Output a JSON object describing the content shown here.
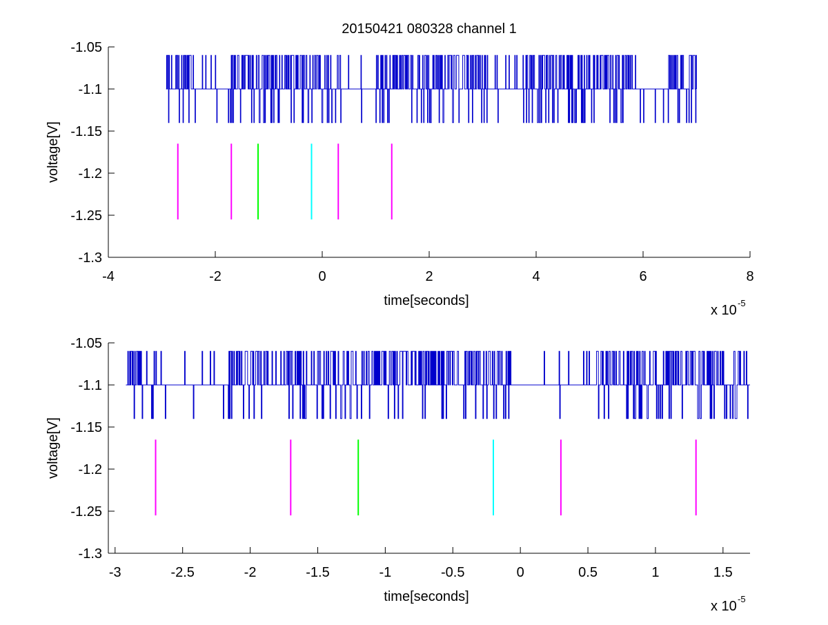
{
  "title": "20150421 080328 channel 1",
  "colors": {
    "signal": "#0000cc",
    "marker_magenta": "#ff00ff",
    "marker_green": "#00ff00",
    "marker_cyan": "#00ffff",
    "axes": "#000000",
    "background": "#ffffff"
  },
  "chart_data": [
    {
      "type": "line",
      "title": "20150421 080328 channel 1",
      "xlabel": "time[seconds]",
      "ylabel": "voltage[V]",
      "x_exponent_label": "x 10",
      "x_exponent": "-5",
      "xlim": [
        -4,
        8
      ],
      "ylim": [
        -1.3,
        -1.05
      ],
      "xticks": [
        -4,
        -2,
        0,
        2,
        4,
        6,
        8
      ],
      "xtick_labels": [
        "-4",
        "-2",
        "0",
        "2",
        "4",
        "6",
        "8"
      ],
      "yticks": [
        -1.3,
        -1.25,
        -1.2,
        -1.15,
        -1.1,
        -1.05
      ],
      "ytick_labels": [
        "-1.3",
        "-1.25",
        "-1.2",
        "-1.15",
        "-1.1",
        "-1.05"
      ],
      "grid": false,
      "series": [
        {
          "kind": "quantized-signal",
          "x_range": [
            -2.92,
            7.0
          ],
          "levels": [
            -1.14,
            -1.1,
            -1.06
          ],
          "baseline": -1.1
        }
      ],
      "markers": [
        {
          "x": -2.7,
          "color": "magenta",
          "y_range": [
            -1.255,
            -1.165
          ]
        },
        {
          "x": -1.7,
          "color": "magenta",
          "y_range": [
            -1.255,
            -1.165
          ]
        },
        {
          "x": -1.2,
          "color": "green",
          "y_range": [
            -1.255,
            -1.165
          ]
        },
        {
          "x": -0.2,
          "color": "cyan",
          "y_range": [
            -1.255,
            -1.165
          ]
        },
        {
          "x": 0.3,
          "color": "magenta",
          "y_range": [
            -1.255,
            -1.165
          ]
        },
        {
          "x": 1.3,
          "color": "magenta",
          "y_range": [
            -1.255,
            -1.165
          ]
        }
      ]
    },
    {
      "type": "line",
      "xlabel": "time[seconds]",
      "ylabel": "voltage[V]",
      "x_exponent_label": "x 10",
      "x_exponent": "-5",
      "xlim": [
        -3.05,
        1.7
      ],
      "ylim": [
        -1.3,
        -1.05
      ],
      "xticks": [
        -3,
        -2.5,
        -2,
        -1.5,
        -1,
        -0.5,
        0,
        0.5,
        1,
        1.5
      ],
      "xtick_labels": [
        "-3",
        "-2.5",
        "-2",
        "-1.5",
        "-1",
        "-0.5",
        "0",
        "0.5",
        "1",
        "1.5"
      ],
      "yticks": [
        -1.3,
        -1.25,
        -1.2,
        -1.15,
        -1.1,
        -1.05
      ],
      "ytick_labels": [
        "-1.3",
        "-1.25",
        "-1.2",
        "-1.15",
        "-1.1",
        "-1.05"
      ],
      "grid": false,
      "series": [
        {
          "kind": "quantized-signal",
          "x_range": [
            -2.92,
            1.7
          ],
          "levels": [
            -1.14,
            -1.1,
            -1.06
          ],
          "baseline": -1.1
        }
      ],
      "markers": [
        {
          "x": -2.7,
          "color": "magenta",
          "y_range": [
            -1.255,
            -1.165
          ]
        },
        {
          "x": -1.7,
          "color": "magenta",
          "y_range": [
            -1.255,
            -1.165
          ]
        },
        {
          "x": -1.2,
          "color": "green",
          "y_range": [
            -1.255,
            -1.165
          ]
        },
        {
          "x": -0.2,
          "color": "cyan",
          "y_range": [
            -1.255,
            -1.165
          ]
        },
        {
          "x": 0.3,
          "color": "magenta",
          "y_range": [
            -1.255,
            -1.165
          ]
        },
        {
          "x": 1.3,
          "color": "magenta",
          "y_range": [
            -1.255,
            -1.165
          ]
        }
      ]
    }
  ]
}
